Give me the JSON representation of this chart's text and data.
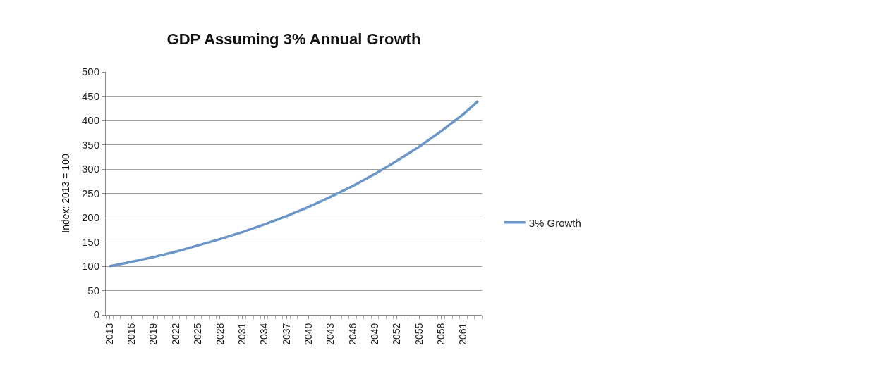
{
  "chart_data": {
    "type": "line",
    "title": "GDP Assuming 3% Annual Growth",
    "ylabel": "Index: 2013 = 100",
    "x": [
      2013,
      2016,
      2019,
      2022,
      2025,
      2028,
      2031,
      2034,
      2037,
      2040,
      2043,
      2046,
      2049,
      2052,
      2055,
      2058,
      2061,
      2063
    ],
    "series": [
      {
        "name": "3% Growth",
        "color": "#6a96c8",
        "values": [
          100,
          109,
          119,
          130,
          143,
          156,
          170,
          186,
          203,
          222,
          243,
          265,
          290,
          317,
          346,
          378,
          413,
          440
        ]
      }
    ],
    "xlim": [
      2012.5,
      2063.5
    ],
    "xticks": [
      2013,
      2016,
      2019,
      2022,
      2025,
      2028,
      2031,
      2034,
      2037,
      2040,
      2043,
      2046,
      2049,
      2052,
      2055,
      2058,
      2061
    ],
    "ylim": [
      0,
      500
    ],
    "yticks": [
      0,
      50,
      100,
      150,
      200,
      250,
      300,
      350,
      400,
      450,
      500
    ],
    "grid": "y",
    "legend": "right",
    "marker": "none",
    "line_style": "solid"
  }
}
